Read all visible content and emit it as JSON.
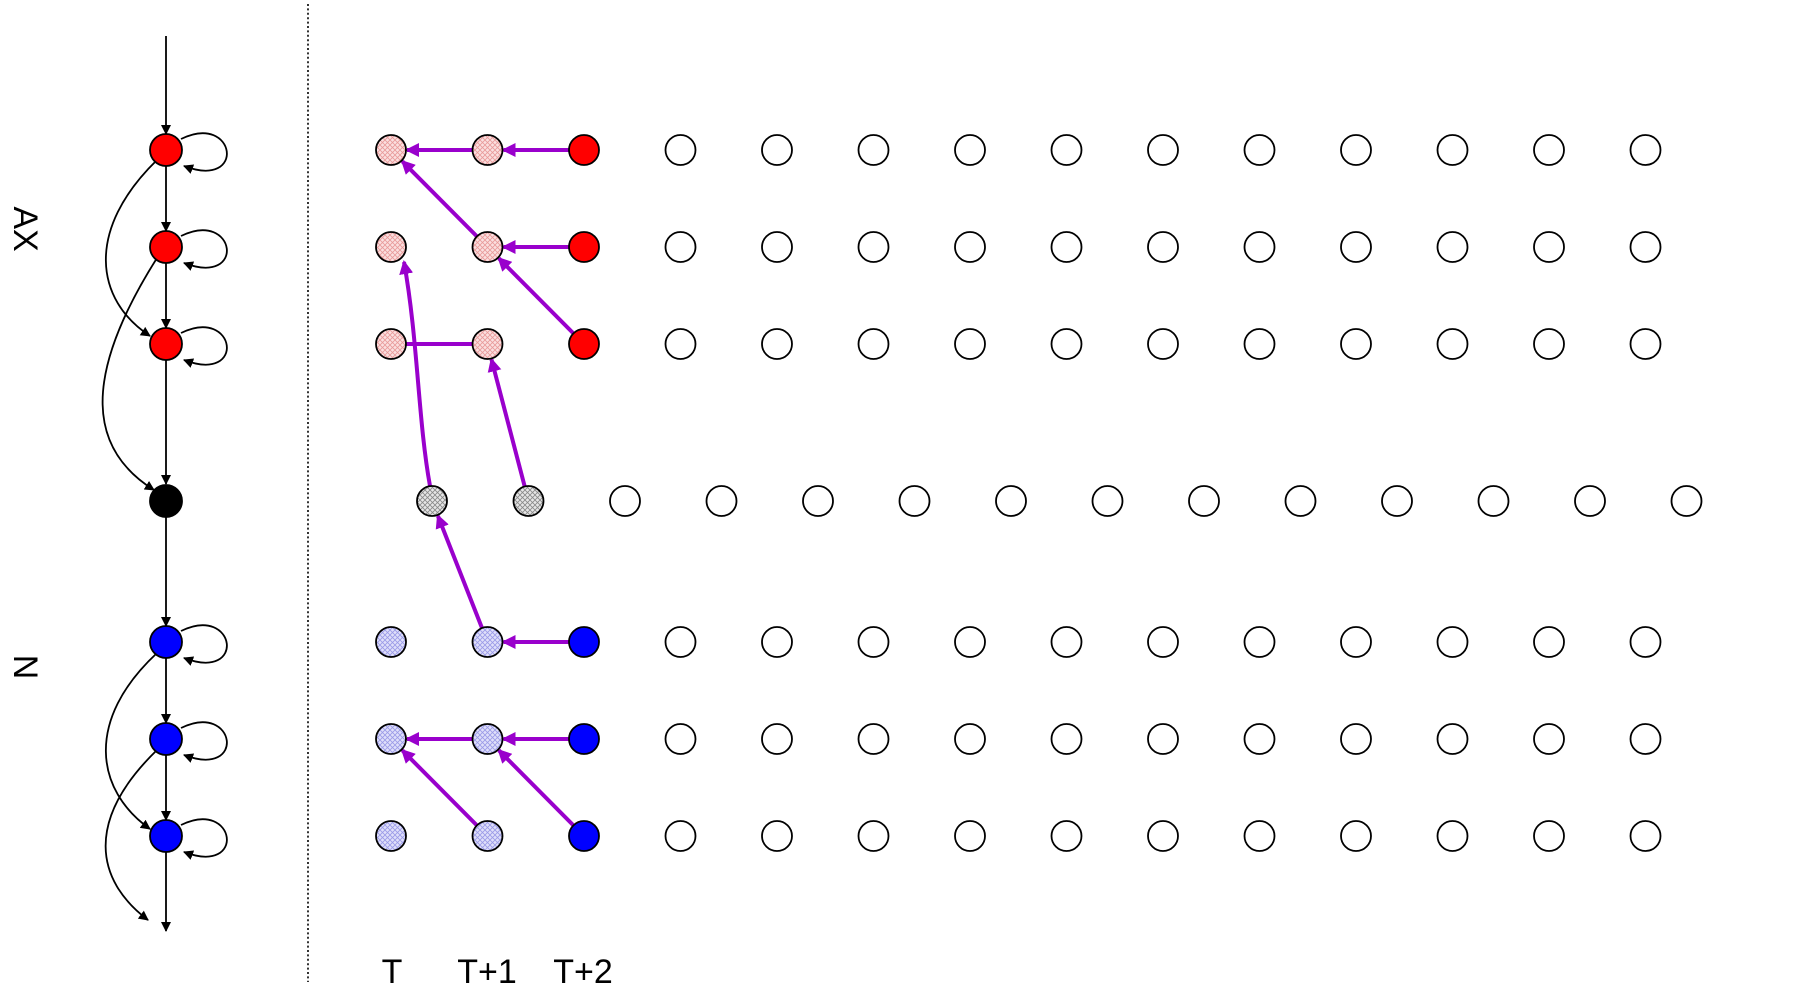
{
  "labels": {
    "top_group": "AX",
    "bottom_group": "N",
    "time_t": "T",
    "time_t1": "T+1",
    "time_t2": "T+2"
  },
  "colors": {
    "ax_state": "#ff0000",
    "n_state": "#0000ff",
    "junction": "#000000",
    "ax_hatched": "#f4c4c4",
    "n_hatched": "#c8c8f0",
    "junction_hatched": "#c8c8c8",
    "trellis_arrow": "#9900cc",
    "edge": "#000000"
  }
}
